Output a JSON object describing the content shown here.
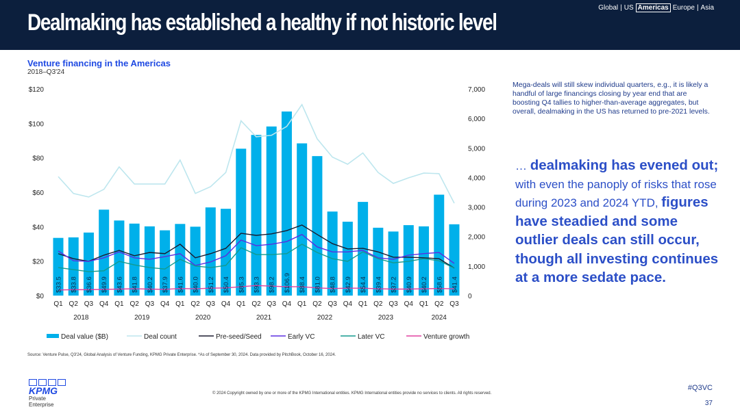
{
  "header": {
    "title": "Dealmaking has established a healthy if not historic level",
    "regions": [
      "Global",
      "|",
      "US"
    ],
    "active_region": "Americas",
    "regions_after": [
      "Europe",
      "|",
      "Asia"
    ]
  },
  "chart_data": {
    "type": "bar",
    "title": "Venture financing in the Americas",
    "subtitle": "2018–Q3'24",
    "categories": [
      "Q1",
      "Q2",
      "Q3",
      "Q4",
      "Q1",
      "Q2",
      "Q3",
      "Q4",
      "Q1",
      "Q2",
      "Q3",
      "Q4",
      "Q1",
      "Q2",
      "Q3",
      "Q4",
      "Q1",
      "Q2",
      "Q3",
      "Q4",
      "Q1",
      "Q2",
      "Q3",
      "Q4",
      "Q1",
      "Q2",
      "Q3"
    ],
    "years": [
      "2018",
      "2019",
      "2020",
      "2021",
      "2022",
      "2023",
      "2024"
    ],
    "bar_series": {
      "name": "Deal value ($B)",
      "color": "#00b0ea",
      "values": [
        33.5,
        33.8,
        36.6,
        49.9,
        43.6,
        41.8,
        40.2,
        37.9,
        41.6,
        40.0,
        51.2,
        50.4,
        85.3,
        93.3,
        98.2,
        106.9,
        88.4,
        81.0,
        48.8,
        42.9,
        54.4,
        39.4,
        37.2,
        40.9,
        40.2,
        58.6,
        41.4
      ],
      "labels": [
        "$33.5",
        "$33.8",
        "$36.6",
        "$49.9",
        "$43.6",
        "$41.8",
        "$40.2",
        "$37.9",
        "$41.6",
        "$40.0",
        "$51.2",
        "$50.4",
        "$85.3",
        "$93.3",
        "$98.2",
        "$106.9",
        "$88.4",
        "$81.0",
        "$48.8",
        "$42.9",
        "$54.4",
        "$39.4",
        "$37.2",
        "$40.9",
        "$40.2",
        "$58.6",
        "$41.4"
      ]
    },
    "line_series": [
      {
        "name": "Deal count",
        "color": "#bde6ee",
        "values": [
          4030,
          3460,
          3340,
          3600,
          4360,
          3780,
          3780,
          3780,
          4590,
          3460,
          3690,
          4170,
          5920,
          5380,
          5430,
          5730,
          6470,
          5310,
          4690,
          4450,
          4830,
          4170,
          3800,
          3990,
          4150,
          4130,
          3130
        ]
      },
      {
        "name": "Pre-seed/Seed",
        "color": "#1a1a2e",
        "values": [
          1420,
          1250,
          1160,
          1370,
          1530,
          1350,
          1460,
          1420,
          1740,
          1280,
          1420,
          1600,
          2110,
          2040,
          2090,
          2200,
          2390,
          2070,
          1760,
          1580,
          1600,
          1480,
          1300,
          1300,
          1280,
          1250,
          930
        ]
      },
      {
        "name": "Early VC",
        "color": "#5b2ee0",
        "values": [
          1510,
          1180,
          1160,
          1280,
          1480,
          1280,
          1230,
          1320,
          1420,
          1020,
          1140,
          1350,
          1880,
          1690,
          1740,
          1830,
          2070,
          1650,
          1480,
          1480,
          1530,
          1280,
          1230,
          1370,
          1420,
          1460,
          1090
        ]
      },
      {
        "name": "Later VC",
        "color": "#139a8e",
        "values": [
          950,
          880,
          810,
          840,
          1160,
          1040,
          950,
          900,
          1230,
          1000,
          950,
          1020,
          1620,
          1390,
          1390,
          1420,
          1740,
          1460,
          1250,
          1160,
          1480,
          1250,
          1110,
          1160,
          1250,
          1180,
          930
        ]
      },
      {
        "name": "Venture growth",
        "color": "#e040a0",
        "values": [
          190,
          200,
          200,
          210,
          220,
          230,
          220,
          210,
          240,
          230,
          250,
          260,
          300,
          340,
          320,
          300,
          300,
          260,
          240,
          250,
          250,
          230,
          220,
          220,
          230,
          240,
          230
        ]
      }
    ],
    "ylim_left": [
      0,
      120
    ],
    "yticks_left": [
      "$0",
      "$20",
      "$40",
      "$60",
      "$80",
      "$100",
      "$120"
    ],
    "ylim_right": [
      0,
      7000
    ],
    "yticks_right": [
      "0",
      "1,000",
      "2,000",
      "3,000",
      "4,000",
      "5,000",
      "6,000",
      "7,000"
    ],
    "grid": false,
    "legend": "bottom"
  },
  "note": "Mega-deals will still skew individual quarters, e.g., it is likely a handful of large financings closing by year end that are boosting Q4 tallies to higher-than-average aggregates, but overall, dealmaking in the US has returned to pre-2021 levels.",
  "callout": {
    "p1": "… ",
    "b1": "dealmaking has evened out;",
    "p2": " with even the panoply of risks that rose during 2023 and 2024 YTD, ",
    "b2": "figures have steadied and some outlier deals can still occur, though all investing continues at a more sedate pace."
  },
  "source": "Source: Venture Pulse, Q3'24, Global Analysis of Venture Funding, KPMG Private Enterprise. *As of September 30, 2024. Data provided by PitchBook, October 16, 2024.",
  "footer": {
    "logo": "KPMG",
    "logo_sub": "Private Enterprise",
    "copyright": "© 2024 Copyright owned by one or more of the KPMG International entities. KPMG International entities provide no services to clients. All rights reserved.",
    "tag": "#Q3VC",
    "page": "37"
  }
}
